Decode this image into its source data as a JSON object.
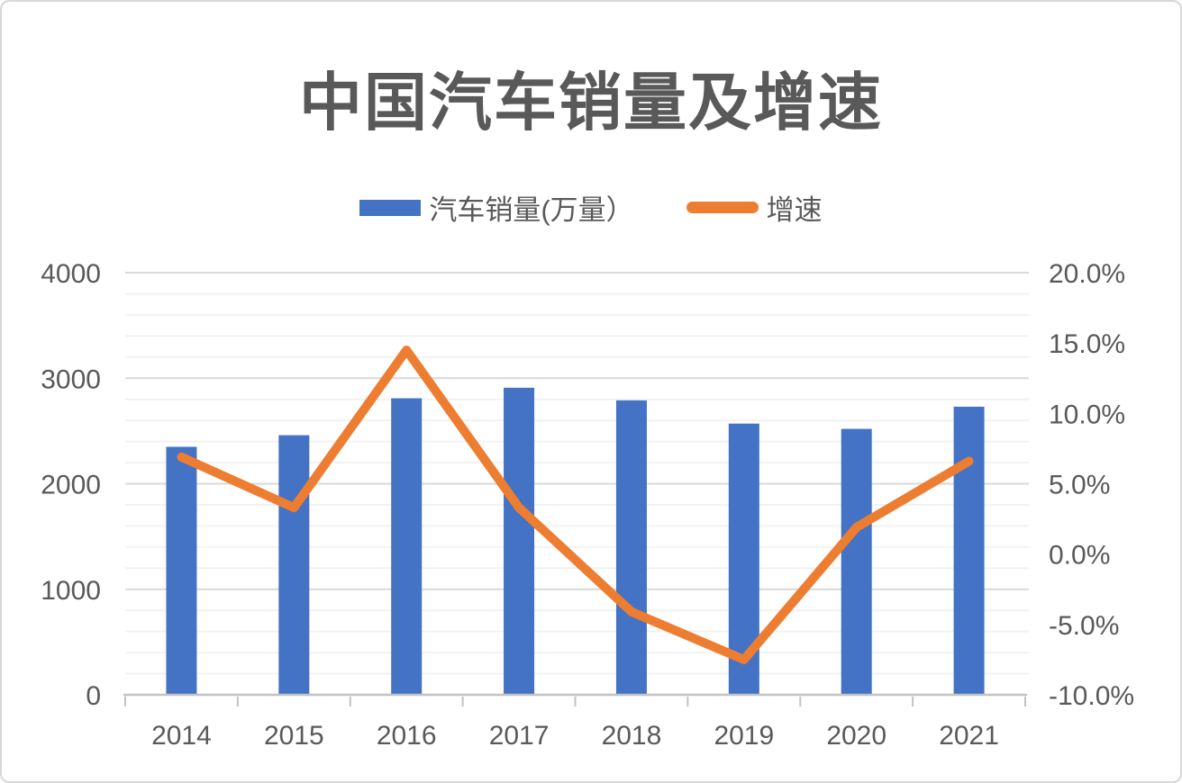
{
  "card": {
    "title": "中国汽车销量及增速"
  },
  "legend": {
    "bar_label": "汽车销量(万量）",
    "line_label": "增速"
  },
  "colors": {
    "bar": "#4472C4",
    "line": "#ED7D31",
    "text": "#595959",
    "grid_major": "#D9D9D9",
    "grid_minor": "#F2F2F2",
    "axis_line": "#C2C2C2"
  },
  "chart_data": {
    "type": "bar",
    "combo": "bar+line",
    "title": "中国汽车销量及增速",
    "categories": [
      "2014",
      "2015",
      "2016",
      "2017",
      "2018",
      "2019",
      "2020",
      "2021"
    ],
    "series": [
      {
        "name": "汽车销量(万量）",
        "type": "bar",
        "axis": "left",
        "color": "#4472C4",
        "values": [
          2350,
          2460,
          2810,
          2910,
          2790,
          2570,
          2520,
          2730
        ]
      },
      {
        "name": "增速",
        "type": "line",
        "axis": "right",
        "color": "#ED7D31",
        "values": [
          6.9,
          3.3,
          14.5,
          3.3,
          -4.1,
          -7.5,
          1.9,
          6.6
        ]
      }
    ],
    "left_axis": {
      "min": 0,
      "max": 4000,
      "tick_values": [
        0,
        1000,
        2000,
        3000,
        4000
      ],
      "tick_labels": [
        "0",
        "1000",
        "2000",
        "3000",
        "4000"
      ],
      "minor_step": 200
    },
    "right_axis": {
      "min": -10,
      "max": 20,
      "tick_values": [
        -10,
        -5,
        0,
        5,
        10,
        15,
        20
      ],
      "tick_labels": [
        "-10.0%",
        "-5.0%",
        "0.0%",
        "5.0%",
        "10.0%",
        "15.0%",
        "20.0%"
      ]
    },
    "legend_position": "top",
    "grid": "horizontal major+minor"
  }
}
